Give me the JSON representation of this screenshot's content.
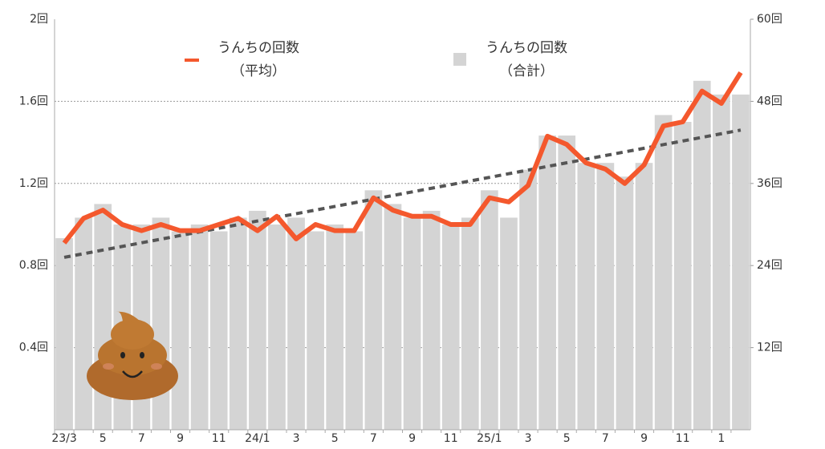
{
  "chart_data": {
    "type": "bar-line",
    "categories": [
      "23/3",
      null,
      "5",
      null,
      "7",
      null,
      "9",
      null,
      "11",
      null,
      "24/1",
      null,
      "3",
      null,
      "5",
      null,
      "7",
      null,
      "9",
      null,
      "11",
      null,
      "25/1",
      null,
      "3",
      null,
      "5",
      null,
      "7",
      null,
      "9",
      null,
      "11",
      null,
      "1",
      null
    ],
    "series": [
      {
        "name": "うんちの回数\n（合計）",
        "type": "bar",
        "axis": "y2",
        "color": "#d4d4d4",
        "values": [
          28,
          31,
          33,
          30,
          30,
          31,
          29,
          30,
          29,
          31,
          32,
          30,
          31,
          29,
          30,
          29,
          35,
          33,
          31,
          32,
          30,
          31,
          35,
          31,
          38,
          43,
          43,
          39,
          39,
          37,
          39,
          46,
          45,
          51,
          49,
          49
        ]
      },
      {
        "name": "うんちの回数\n（平均）",
        "type": "line",
        "axis": "y",
        "color": "#f4582d",
        "values": [
          0.91,
          1.03,
          1.07,
          1.0,
          0.97,
          1.0,
          0.97,
          0.97,
          1.0,
          1.03,
          0.97,
          1.04,
          0.93,
          1.0,
          0.97,
          0.97,
          1.13,
          1.07,
          1.04,
          1.04,
          1.0,
          1.0,
          1.13,
          1.11,
          1.19,
          1.43,
          1.39,
          1.3,
          1.27,
          1.2,
          1.29,
          1.48,
          1.5,
          1.65,
          1.59,
          1.74
        ]
      }
    ],
    "trend": {
      "values": [
        0.84,
        1.46
      ],
      "color": "#555555",
      "dashed": true
    },
    "ylim": [
      0,
      2
    ],
    "yticks": [
      {
        "value": 0.4,
        "label": "0.4回"
      },
      {
        "value": 0.8,
        "label": "0.8回"
      },
      {
        "value": 1.2,
        "label": "1.2回"
      },
      {
        "value": 1.6,
        "label": "1.6回"
      },
      {
        "value": 2,
        "label": "2回"
      }
    ],
    "y2lim": [
      0,
      60
    ],
    "y2ticks": [
      {
        "value": 12,
        "label": "12回"
      },
      {
        "value": 24,
        "label": "24回"
      },
      {
        "value": 36,
        "label": "36回"
      },
      {
        "value": 48,
        "label": "48回"
      },
      {
        "value": 60,
        "label": "60回"
      }
    ],
    "grid": true
  }
}
